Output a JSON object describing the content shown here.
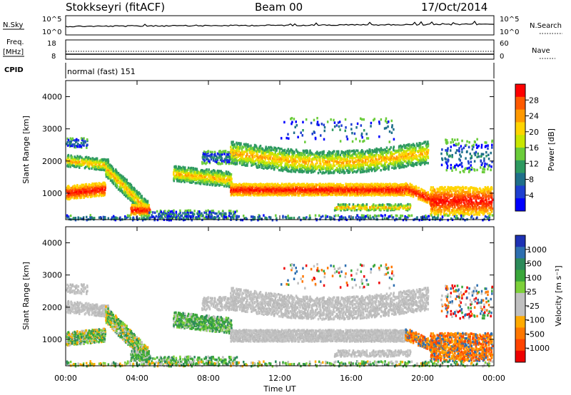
{
  "header": {
    "station": "Stokkseyri (fitACF)",
    "beam": "Beam 00",
    "date": "17/Oct/2014"
  },
  "side_labels": {
    "nsky": "N.Sky",
    "nsearch": "N.Search",
    "freq": "Freq.",
    "mhz": "[MHz]",
    "nave": "Nave",
    "cpid": "CPID",
    "cpid_value": "normal (fast) 151",
    "noise_top": "10^5",
    "noise_bottom": "10^0",
    "freq_top": "18",
    "freq_bottom": "8",
    "nave_top": "60",
    "nave_bottom": "0"
  },
  "chart_data": [
    {
      "type": "heatmap",
      "name": "power",
      "ylabel": "Slant Range [km]",
      "ylim": [
        180,
        4500
      ],
      "yticks": [
        1000,
        2000,
        3000,
        4000
      ],
      "xlim": [
        0,
        24
      ],
      "colorbar": {
        "label": "Power [dB]",
        "ticks": [
          "28",
          "24",
          "20",
          "16",
          "12",
          "8",
          "4"
        ],
        "colors": [
          "#ff0000",
          "#ff5a00",
          "#ff9900",
          "#ffd400",
          "#c8e600",
          "#6acc3a",
          "#2e9a60",
          "#1f6f8a",
          "#1e3fd0",
          "#0000ff"
        ]
      }
    },
    {
      "type": "heatmap",
      "name": "velocity",
      "ylabel": "Slant Range [km]",
      "ylim": [
        180,
        4500
      ],
      "yticks": [
        1000,
        2000,
        3000,
        4000
      ],
      "xlim": [
        0,
        24
      ],
      "colorbar": {
        "label": "Velocity [m s⁻¹]",
        "ticks": [
          "1000",
          "500",
          "100",
          "25",
          "-25",
          "-100",
          "-500",
          "-1000"
        ],
        "colors": [
          "#1e32b4",
          "#2e6fb0",
          "#2c8a5a",
          "#3aa63a",
          "#7dd03a",
          "#c0c0c0",
          "#c0c0c0",
          "#ffaa00",
          "#ff7700",
          "#ff4400",
          "#ee0000"
        ]
      }
    }
  ],
  "x_axis": {
    "label": "Time UT",
    "ticks": [
      "00:00",
      "04:00",
      "08:00",
      "12:00",
      "16:00",
      "20:00",
      "00:00"
    ]
  }
}
